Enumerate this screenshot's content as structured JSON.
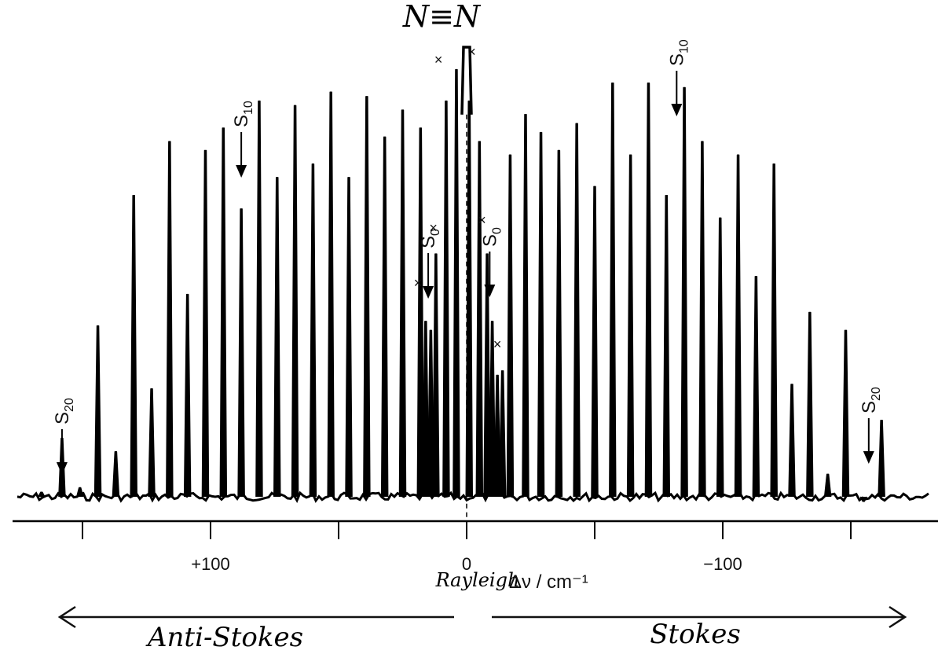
{
  "chart_data": {
    "type": "line",
    "title": "N≡N",
    "xlabel": "Δν / cm⁻¹",
    "x_reversed": true,
    "xlim": [
      175,
      -185
    ],
    "x_ticks": [
      150,
      100,
      50,
      0,
      -50,
      -100,
      -150
    ],
    "tick_labels": [
      {
        "value": 100,
        "text": "+100"
      },
      {
        "value": 0,
        "text": "0"
      },
      {
        "value": -100,
        "text": "−100"
      }
    ],
    "center_label": "Rayleigh",
    "direction_labels": {
      "left": "Anti-Stokes",
      "right": "Stokes"
    },
    "baseline": 0.05,
    "series": [
      {
        "peaks": [
          {
            "x": 166,
            "h": 0.06
          },
          {
            "x": 158,
            "h": 0.18
          },
          {
            "x": 151,
            "h": 0.07
          },
          {
            "x": 144,
            "h": 0.43
          },
          {
            "x": 137,
            "h": 0.15
          },
          {
            "x": 130,
            "h": 0.72
          },
          {
            "x": 123,
            "h": 0.29
          },
          {
            "x": 116,
            "h": 0.84
          },
          {
            "x": 109,
            "h": 0.5
          },
          {
            "x": 102,
            "h": 0.82
          },
          {
            "x": 95,
            "h": 0.87
          },
          {
            "x": 88,
            "h": 0.69
          },
          {
            "x": 81,
            "h": 0.93
          },
          {
            "x": 74,
            "h": 0.76
          },
          {
            "x": 67,
            "h": 0.92
          },
          {
            "x": 60,
            "h": 0.79
          },
          {
            "x": 53,
            "h": 0.95
          },
          {
            "x": 46,
            "h": 0.76
          },
          {
            "x": 39,
            "h": 0.94
          },
          {
            "x": 32,
            "h": 0.85
          },
          {
            "x": 25,
            "h": 0.91
          },
          {
            "x": 18,
            "h": 0.87
          },
          {
            "x": 16,
            "h": 0.44
          },
          {
            "x": 14,
            "h": 0.42
          },
          {
            "x": 12,
            "h": 0.59
          },
          {
            "x": 8,
            "h": 0.93
          },
          {
            "x": 4,
            "h": 1.0
          },
          {
            "x": -1,
            "h": 0.93
          },
          {
            "x": -5,
            "h": 0.84
          },
          {
            "x": -8,
            "h": 0.59
          },
          {
            "x": -10,
            "h": 0.44
          },
          {
            "x": -12,
            "h": 0.32
          },
          {
            "x": -14,
            "h": 0.33
          },
          {
            "x": -17,
            "h": 0.81
          },
          {
            "x": -23,
            "h": 0.9
          },
          {
            "x": -29,
            "h": 0.86
          },
          {
            "x": -36,
            "h": 0.82
          },
          {
            "x": -43,
            "h": 0.88
          },
          {
            "x": -50,
            "h": 0.74
          },
          {
            "x": -57,
            "h": 0.97
          },
          {
            "x": -64,
            "h": 0.81
          },
          {
            "x": -71,
            "h": 0.97
          },
          {
            "x": -78,
            "h": 0.72
          },
          {
            "x": -85,
            "h": 0.96
          },
          {
            "x": -92,
            "h": 0.84
          },
          {
            "x": -99,
            "h": 0.67
          },
          {
            "x": -106,
            "h": 0.81
          },
          {
            "x": -113,
            "h": 0.54
          },
          {
            "x": -120,
            "h": 0.79
          },
          {
            "x": -127,
            "h": 0.3
          },
          {
            "x": -134,
            "h": 0.46
          },
          {
            "x": -141,
            "h": 0.1
          },
          {
            "x": -148,
            "h": 0.42
          },
          {
            "x": -155,
            "h": 0.04
          },
          {
            "x": -162,
            "h": 0.22
          }
        ],
        "rayleigh": {
          "x": 0,
          "h": 1.05
        }
      }
    ],
    "annotations": {
      "arrows": [
        {
          "label": "S",
          "sub": "20",
          "x": 158
        },
        {
          "label": "S",
          "sub": "10",
          "x": 88
        },
        {
          "label": "S",
          "sub": "0",
          "x": 15
        },
        {
          "label": "S",
          "sub": "0",
          "x": -9
        },
        {
          "label": "S",
          "sub": "10",
          "x": -82
        },
        {
          "label": "S",
          "sub": "20",
          "x": -157
        }
      ],
      "x_marks": [
        {
          "text": "×",
          "x": 11
        },
        {
          "text": "×",
          "x": -2
        },
        {
          "text": "×",
          "x": 19
        },
        {
          "text": "×",
          "x": 13
        },
        {
          "text": "×",
          "x": -6
        },
        {
          "text": "×",
          "x": -12
        }
      ]
    },
    "grid": false,
    "legend": "none"
  }
}
